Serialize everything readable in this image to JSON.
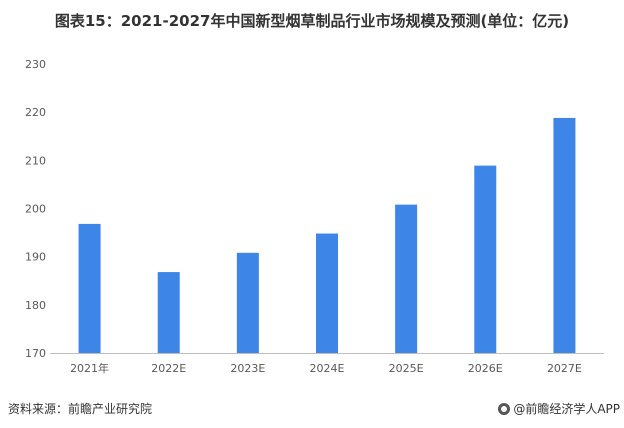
{
  "title": "图表15：2021-2027年中国新型烟草制品行业市场规模及预测(单位：亿元)",
  "footer": {
    "source": "资料来源：前瞻产业研究院",
    "brand": "@前瞻经济学人APP"
  },
  "colors": {
    "bar": "#3d85e6",
    "axis": "#bfbfbf"
  },
  "chart_data": {
    "type": "bar",
    "title": "图表15：2021-2027年中国新型烟草制品行业市场规模及预测(单位：亿元)",
    "categories": [
      "2021年",
      "2022E",
      "2023E",
      "2024E",
      "2025E",
      "2026E",
      "2027E"
    ],
    "values": [
      196.8,
      186.8,
      190.8,
      194.8,
      200.8,
      208.9,
      218.8
    ],
    "ylim": [
      170,
      230
    ],
    "yticks": [
      170,
      180,
      190,
      200,
      210,
      220,
      230
    ],
    "xlabel": "",
    "ylabel": "",
    "grid": false,
    "legend": "none"
  }
}
